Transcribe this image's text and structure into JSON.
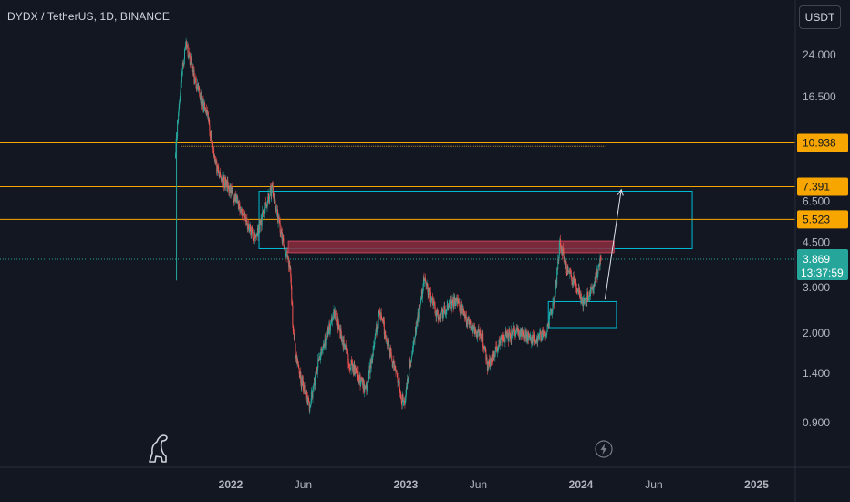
{
  "header": {
    "symbol_title": "DYDX / TetherUS, 1D, BINANCE",
    "currency_button": "USDT"
  },
  "colors": {
    "background": "#131722",
    "axis_text": "#b2b5be",
    "candle_up": "#26a69a",
    "candle_down": "#ef5350",
    "level_line": "#f7a600",
    "box_stroke": "#00bcd4",
    "supply_zone": "#8b2e3f",
    "price_line": "#26a69a"
  },
  "icons": {
    "logo": "dinosaur-logo-icon",
    "bolt": "lightning-bolt-icon"
  },
  "chart_data": {
    "type": "candlestick",
    "scale": "log",
    "x_ticks": [
      "2022",
      "Jun",
      "2023",
      "Jun",
      "2024",
      "Jun",
      "2025"
    ],
    "y_ticks": [
      "24.000",
      "16.500",
      "10.938",
      "7.391",
      "6.500",
      "5.523",
      "4.500",
      "3.869",
      "3.000",
      "2.000",
      "1.400",
      "0.900"
    ],
    "horizontal_levels": [
      10.938,
      7.391,
      5.523
    ],
    "last_price": {
      "value": "3.869",
      "countdown": "13:37:59"
    },
    "series": [
      {
        "date": "2021-09-08",
        "value": 10.5
      },
      {
        "date": "2021-09-20",
        "value": 19.5
      },
      {
        "date": "2021-09-30",
        "value": 27.0
      },
      {
        "date": "2021-10-20",
        "value": 18.5
      },
      {
        "date": "2021-11-15",
        "value": 13.5
      },
      {
        "date": "2021-12-05",
        "value": 8.3
      },
      {
        "date": "2022-01-05",
        "value": 7.0
      },
      {
        "date": "2022-02-01",
        "value": 5.5
      },
      {
        "date": "2022-02-20",
        "value": 4.6
      },
      {
        "date": "2022-03-28",
        "value": 7.3
      },
      {
        "date": "2022-04-20",
        "value": 4.5
      },
      {
        "date": "2022-05-05",
        "value": 3.5
      },
      {
        "date": "2022-05-12",
        "value": 1.9
      },
      {
        "date": "2022-05-28",
        "value": 1.3
      },
      {
        "date": "2022-06-14",
        "value": 1.05
      },
      {
        "date": "2022-07-05",
        "value": 1.6
      },
      {
        "date": "2022-08-05",
        "value": 2.4
      },
      {
        "date": "2022-09-05",
        "value": 1.55
      },
      {
        "date": "2022-10-10",
        "value": 1.2
      },
      {
        "date": "2022-11-08",
        "value": 2.45
      },
      {
        "date": "2022-11-25",
        "value": 1.8
      },
      {
        "date": "2022-12-28",
        "value": 1.05
      },
      {
        "date": "2023-01-20",
        "value": 2.0
      },
      {
        "date": "2023-02-08",
        "value": 3.2
      },
      {
        "date": "2023-03-10",
        "value": 2.3
      },
      {
        "date": "2023-04-15",
        "value": 2.7
      },
      {
        "date": "2023-05-10",
        "value": 2.2
      },
      {
        "date": "2023-06-10",
        "value": 1.9
      },
      {
        "date": "2023-06-20",
        "value": 1.5
      },
      {
        "date": "2023-07-20",
        "value": 1.9
      },
      {
        "date": "2023-08-20",
        "value": 2.05
      },
      {
        "date": "2023-09-20",
        "value": 1.9
      },
      {
        "date": "2023-10-20",
        "value": 2.0
      },
      {
        "date": "2023-11-08",
        "value": 2.8
      },
      {
        "date": "2023-11-18",
        "value": 4.5
      },
      {
        "date": "2023-12-05",
        "value": 3.4
      },
      {
        "date": "2023-12-25",
        "value": 3.0
      },
      {
        "date": "2024-01-05",
        "value": 2.55
      },
      {
        "date": "2024-01-25",
        "value": 3.0
      },
      {
        "date": "2024-02-12",
        "value": 3.869
      }
    ],
    "annotations": {
      "supply_zone": {
        "x0": "2022-05-01",
        "x1": "2024-03-10",
        "y0": 4.1,
        "y1": 4.55
      },
      "upper_box": {
        "x0": "2022-03-01",
        "x1": "2024-08-20",
        "y0": 4.25,
        "y1": 7.1
      },
      "demand_box": {
        "x0": "2023-10-25",
        "x1": "2024-03-15",
        "y0": 2.1,
        "y1": 2.65
      },
      "arrow": {
        "from": {
          "date": "2024-02-20",
          "value": 2.7
        },
        "to": {
          "date": "2024-03-25",
          "value": 7.2
        }
      },
      "dotted_level": {
        "x0": "2021-09-20",
        "x1": "2024-02-20",
        "y": 10.6
      },
      "spike_line": {
        "date": "2021-09-10",
        "low": 3.2,
        "high": 12.0
      }
    }
  }
}
